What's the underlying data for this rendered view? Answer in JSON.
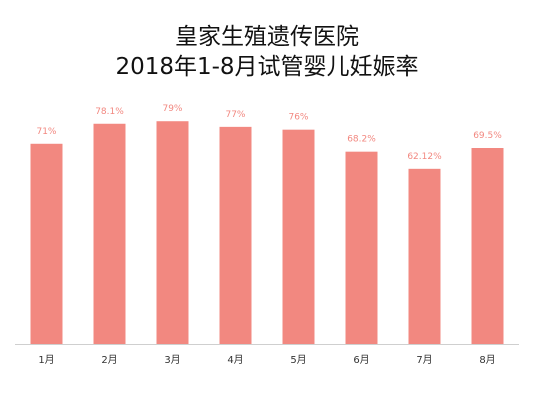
{
  "chart_data": {
    "type": "bar",
    "title": "皇家生殖遗传医院",
    "subtitle": "2018年1-8月试管婴儿妊娠率",
    "categories": [
      "1月",
      "2月",
      "3月",
      "4月",
      "5月",
      "6月",
      "7月",
      "8月"
    ],
    "values": [
      71,
      78.1,
      79,
      77,
      76,
      68.2,
      62.12,
      69.5
    ],
    "data_labels": [
      "71%",
      "78.1%",
      "79%",
      "77%",
      "76%",
      "68.2%",
      "62.12%",
      "69.5%"
    ],
    "ylim": [
      0,
      100
    ],
    "grid": false,
    "bar_color": "#f28880",
    "label_color": "#f28880",
    "axis_color": "#cfcfcf"
  }
}
